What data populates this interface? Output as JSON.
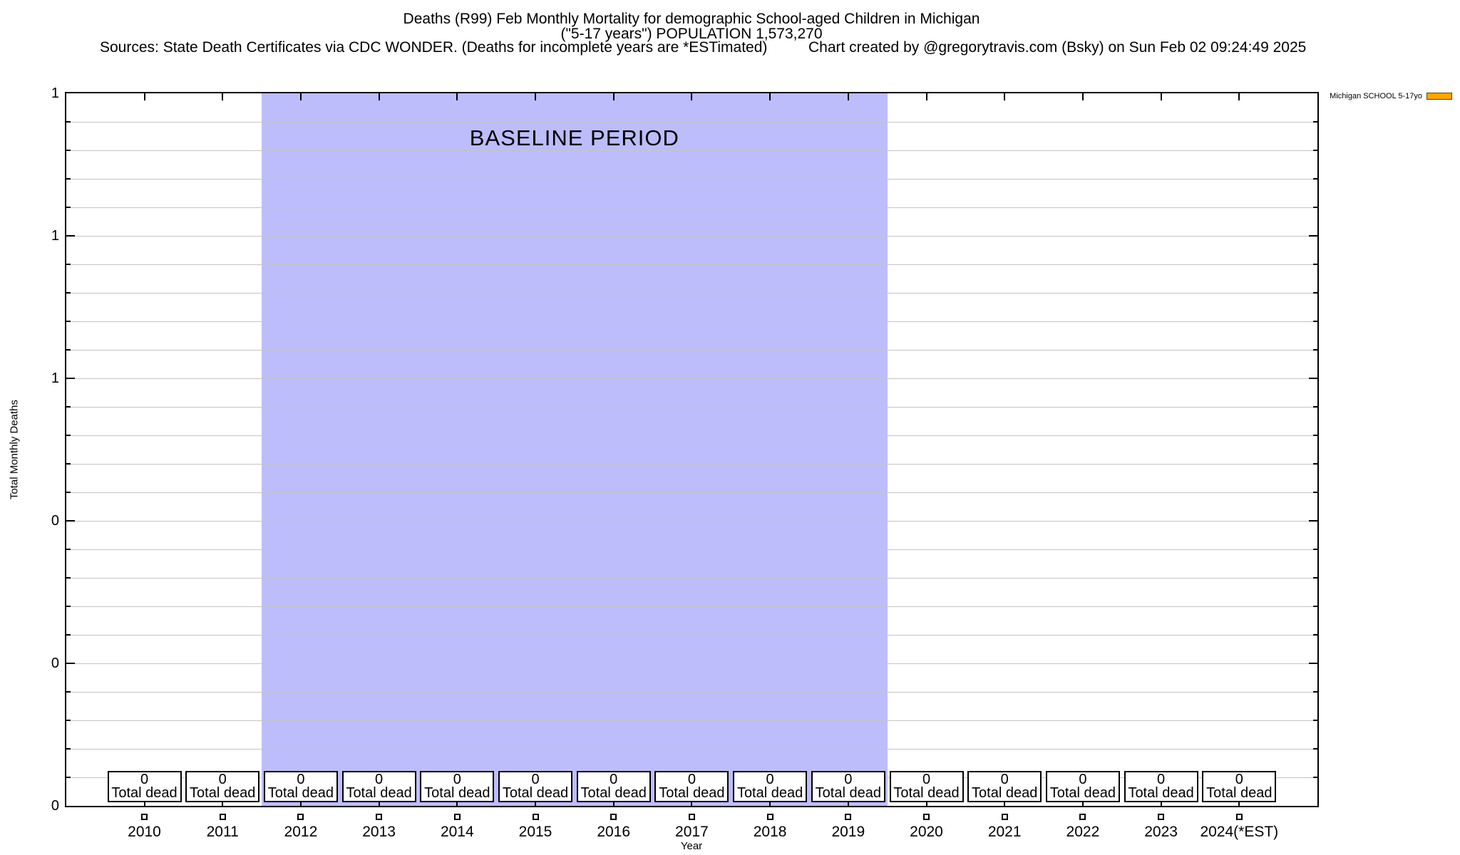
{
  "header": {
    "title_line1": "Deaths (R99) Feb Monthly Mortality for demographic School-aged Children in Michigan",
    "title_line2": "(\"5-17 years\") POPULATION 1,573,270",
    "sources": "Sources: State Death Certificates via CDC WONDER. (Deaths for incomplete years are *ESTimated)",
    "credit": "Chart created by @gregorytravis.com (Bsky) on Sun Feb 02 09:24:49 2025"
  },
  "legend": {
    "label": "Michigan SCHOOL 5-17yo",
    "swatch_color": "#ffa500",
    "swatch_border": "#5c4400"
  },
  "axes": {
    "y_title": "Total Monthly Deaths",
    "x_title": "Year",
    "y_tick_labels": [
      "1",
      "1",
      "1",
      "0",
      "0",
      "0"
    ]
  },
  "baseline": {
    "label": "BASELINE PERIOD",
    "color": "#bdbdfc",
    "start_year": 2011.5,
    "end_year": 2019.5
  },
  "years": [
    {
      "label": "2010",
      "value": "0",
      "note": "Total dead"
    },
    {
      "label": "2011",
      "value": "0",
      "note": "Total dead"
    },
    {
      "label": "2012",
      "value": "0",
      "note": "Total dead"
    },
    {
      "label": "2013",
      "value": "0",
      "note": "Total dead"
    },
    {
      "label": "2014",
      "value": "0",
      "note": "Total dead"
    },
    {
      "label": "2015",
      "value": "0",
      "note": "Total dead"
    },
    {
      "label": "2016",
      "value": "0",
      "note": "Total dead"
    },
    {
      "label": "2017",
      "value": "0",
      "note": "Total dead"
    },
    {
      "label": "2018",
      "value": "0",
      "note": "Total dead"
    },
    {
      "label": "2019",
      "value": "0",
      "note": "Total dead"
    },
    {
      "label": "2020",
      "value": "0",
      "note": "Total dead"
    },
    {
      "label": "2021",
      "value": "0",
      "note": "Total dead"
    },
    {
      "label": "2022",
      "value": "0",
      "note": "Total dead"
    },
    {
      "label": "2023",
      "value": "0",
      "note": "Total dead"
    },
    {
      "label": "2024(*EST)",
      "value": "0",
      "note": "Total dead"
    }
  ],
  "colors": {
    "grid": "#c4c4c4",
    "axis": "#000000",
    "background": "#ffffff"
  },
  "chart_data": {
    "type": "line",
    "title": "Deaths (R99) Feb Monthly Mortality for demographic School-aged Children in Michigan (\"5-17 years\") POPULATION 1,573,270",
    "xlabel": "Year",
    "ylabel": "Total Monthly Deaths",
    "x": [
      2010,
      2011,
      2012,
      2013,
      2014,
      2015,
      2016,
      2017,
      2018,
      2019,
      2020,
      2021,
      2022,
      2023,
      2024
    ],
    "x_tick_labels": [
      "2010",
      "2011",
      "2012",
      "2013",
      "2014",
      "2015",
      "2016",
      "2017",
      "2018",
      "2019",
      "2020",
      "2021",
      "2022",
      "2023",
      "2024(*EST)"
    ],
    "series": [
      {
        "name": "Michigan SCHOOL 5-17yo",
        "color": "#ffa500",
        "marker": "open-square",
        "values": [
          0,
          0,
          0,
          0,
          0,
          0,
          0,
          0,
          0,
          0,
          0,
          0,
          0,
          0,
          0
        ]
      }
    ],
    "ylim": [
      0,
      1
    ],
    "y_tick_labels_shown": [
      "1",
      "1",
      "1",
      "0",
      "0",
      "0"
    ],
    "grid": true,
    "legend_position": "outside-top-right",
    "annotations": [
      {
        "type": "region",
        "label": "BASELINE PERIOD",
        "x_start": 2011.5,
        "x_end": 2019.5,
        "color": "#bdbdfc"
      },
      {
        "type": "per-year-label-box",
        "text_value": "0",
        "text_note": "Total dead",
        "applies_to": "every year 2010-2024"
      }
    ]
  }
}
